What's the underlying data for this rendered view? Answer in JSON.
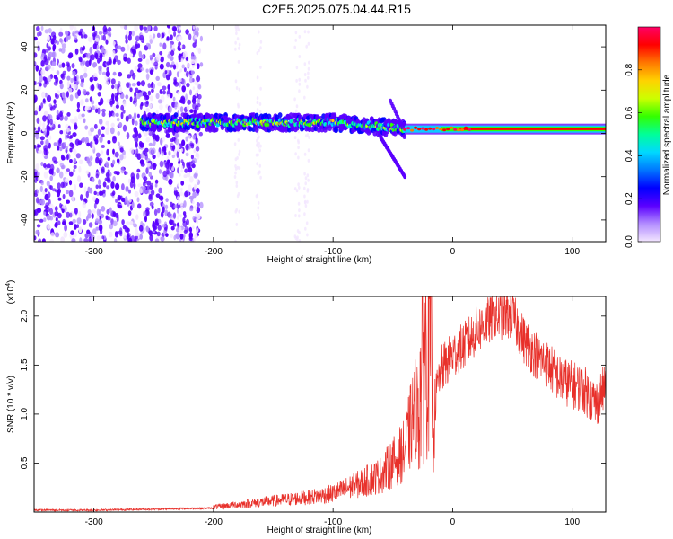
{
  "title": "C2E5.2025.075.04.44.R15",
  "chart_data": [
    {
      "type": "heatmap",
      "title": "C2E5.2025.075.04.44.R15",
      "xlabel": "Height of straight line (km)",
      "ylabel": "Frequency (Hz)",
      "xlim": [
        -350,
        128
      ],
      "ylim": [
        -50,
        50
      ],
      "x_ticks": [
        -300,
        -200,
        -100,
        0,
        100
      ],
      "y_ticks": [
        -40,
        -20,
        0,
        20,
        40
      ],
      "colorbar": {
        "label": "Normalized spectral amplitude",
        "range": [
          0,
          1
        ],
        "ticks": [
          "0.0",
          "0.2",
          "0.4",
          "0.6",
          "0.8"
        ],
        "colors": [
          "#f3e6ff",
          "#b28cff",
          "#5a00ff",
          "#0000ff",
          "#0077ff",
          "#00d8ff",
          "#00ff99",
          "#33ff00",
          "#ccff00",
          "#ffd200",
          "#ff7700",
          "#ff0000",
          "#ff0066"
        ]
      },
      "features": [
        {
          "name": "noise",
          "x_range": [
            -350,
            -230
          ],
          "freq_range": [
            -50,
            50
          ],
          "level": 0.15
        },
        {
          "name": "band",
          "x_range": [
            -260,
            -40
          ],
          "center_freq": 5,
          "level": 0.5
        },
        {
          "name": "line",
          "x_range": [
            -40,
            128
          ],
          "center_freq": 2,
          "level": 0.95
        }
      ]
    },
    {
      "type": "line",
      "xlabel": "Height of straight line (km)",
      "ylabel": "SNR (10 * v/v)",
      "y_multiplier": "(x10^4)",
      "xlim": [
        -350,
        128
      ],
      "ylim": [
        0,
        2.2
      ],
      "x_ticks": [
        -300,
        -200,
        -100,
        0,
        100
      ],
      "y_ticks": [
        0.5,
        1.0,
        1.5,
        2.0
      ],
      "color": "#e8302a",
      "series": [
        {
          "x": [
            -350,
            -300,
            -250,
            -200,
            -170,
            -150,
            -120,
            -100,
            -80,
            -60,
            -40,
            -30,
            -25,
            -20,
            -15,
            -10,
            0,
            10,
            20,
            30,
            40,
            50,
            60,
            70,
            80,
            90,
            100,
            110,
            120,
            128
          ],
          "values": [
            0.02,
            0.02,
            0.03,
            0.04,
            0.07,
            0.09,
            0.12,
            0.15,
            0.22,
            0.3,
            0.5,
            0.9,
            1.5,
            1.9,
            1.1,
            1.45,
            1.6,
            1.7,
            1.85,
            1.95,
            2.0,
            2.0,
            1.75,
            1.6,
            1.5,
            1.35,
            1.3,
            1.25,
            1.1,
            1.3
          ]
        }
      ]
    }
  ]
}
